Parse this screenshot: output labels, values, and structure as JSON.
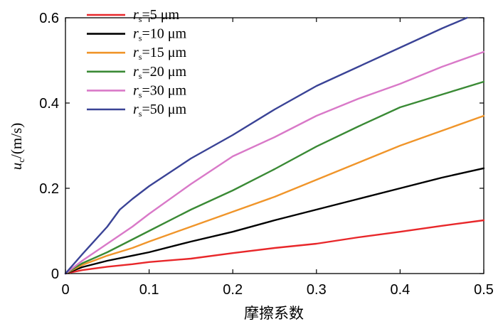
{
  "chart_data": {
    "type": "line",
    "xlabel": "摩擦系数",
    "ylabel": {
      "var": "u",
      "sub": "c",
      "unit": "/(m/s)"
    },
    "xlim": [
      0,
      0.5
    ],
    "ylim": [
      0,
      0.6
    ],
    "xticks": [
      0,
      0.1,
      0.2,
      0.3,
      0.4,
      0.5
    ],
    "xtick_labels": [
      "0",
      "0.1",
      "0.2",
      "0.3",
      "0.4",
      "0.5"
    ],
    "yticks": [
      0,
      0.2,
      0.4,
      0.6
    ],
    "ytick_labels": [
      "0",
      "0.2",
      "0.4",
      "0.6"
    ],
    "grid": false,
    "legend_position": "top-left",
    "series": [
      {
        "name": "=5 μm",
        "var": "r",
        "sub": "s",
        "color": "#e8272a",
        "points": [
          [
            0,
            0
          ],
          [
            0.02,
            0.008
          ],
          [
            0.05,
            0.016
          ],
          [
            0.08,
            0.022
          ],
          [
            0.1,
            0.027
          ],
          [
            0.15,
            0.035
          ],
          [
            0.2,
            0.048
          ],
          [
            0.25,
            0.06
          ],
          [
            0.3,
            0.07
          ],
          [
            0.35,
            0.085
          ],
          [
            0.4,
            0.098
          ],
          [
            0.45,
            0.112
          ],
          [
            0.5,
            0.125
          ]
        ]
      },
      {
        "name": "=10 μm",
        "var": "r",
        "sub": "s",
        "color": "#000000",
        "points": [
          [
            0,
            0
          ],
          [
            0.02,
            0.015
          ],
          [
            0.05,
            0.03
          ],
          [
            0.08,
            0.042
          ],
          [
            0.1,
            0.05
          ],
          [
            0.15,
            0.075
          ],
          [
            0.2,
            0.098
          ],
          [
            0.25,
            0.125
          ],
          [
            0.3,
            0.15
          ],
          [
            0.35,
            0.175
          ],
          [
            0.4,
            0.2
          ],
          [
            0.45,
            0.225
          ],
          [
            0.5,
            0.247
          ]
        ]
      },
      {
        "name": "=15 μm",
        "var": "r",
        "sub": "s",
        "color": "#f0952a",
        "points": [
          [
            0,
            0
          ],
          [
            0.02,
            0.02
          ],
          [
            0.05,
            0.042
          ],
          [
            0.08,
            0.06
          ],
          [
            0.1,
            0.075
          ],
          [
            0.15,
            0.11
          ],
          [
            0.2,
            0.145
          ],
          [
            0.25,
            0.18
          ],
          [
            0.3,
            0.22
          ],
          [
            0.35,
            0.26
          ],
          [
            0.4,
            0.3
          ],
          [
            0.45,
            0.335
          ],
          [
            0.5,
            0.37
          ]
        ]
      },
      {
        "name": "=20 μm",
        "var": "r",
        "sub": "s",
        "color": "#3a8a35",
        "points": [
          [
            0,
            0
          ],
          [
            0.02,
            0.024
          ],
          [
            0.05,
            0.05
          ],
          [
            0.08,
            0.08
          ],
          [
            0.1,
            0.1
          ],
          [
            0.15,
            0.15
          ],
          [
            0.2,
            0.195
          ],
          [
            0.25,
            0.245
          ],
          [
            0.3,
            0.298
          ],
          [
            0.35,
            0.345
          ],
          [
            0.4,
            0.39
          ],
          [
            0.45,
            0.42
          ],
          [
            0.5,
            0.45
          ]
        ]
      },
      {
        "name": "=30 μm",
        "var": "r",
        "sub": "s",
        "color": "#d979c8",
        "points": [
          [
            0,
            0
          ],
          [
            0.02,
            0.03
          ],
          [
            0.05,
            0.07
          ],
          [
            0.08,
            0.11
          ],
          [
            0.1,
            0.14
          ],
          [
            0.15,
            0.21
          ],
          [
            0.2,
            0.275
          ],
          [
            0.25,
            0.32
          ],
          [
            0.3,
            0.37
          ],
          [
            0.35,
            0.41
          ],
          [
            0.4,
            0.445
          ],
          [
            0.45,
            0.485
          ],
          [
            0.5,
            0.52
          ]
        ]
      },
      {
        "name": "=50 μm",
        "var": "r",
        "sub": "s",
        "color": "#3a4396",
        "points": [
          [
            0,
            0
          ],
          [
            0.02,
            0.045
          ],
          [
            0.05,
            0.11
          ],
          [
            0.065,
            0.15
          ],
          [
            0.08,
            0.175
          ],
          [
            0.1,
            0.205
          ],
          [
            0.15,
            0.27
          ],
          [
            0.2,
            0.325
          ],
          [
            0.25,
            0.385
          ],
          [
            0.3,
            0.44
          ],
          [
            0.35,
            0.485
          ],
          [
            0.4,
            0.53
          ],
          [
            0.45,
            0.575
          ],
          [
            0.48,
            0.6
          ]
        ]
      }
    ]
  }
}
